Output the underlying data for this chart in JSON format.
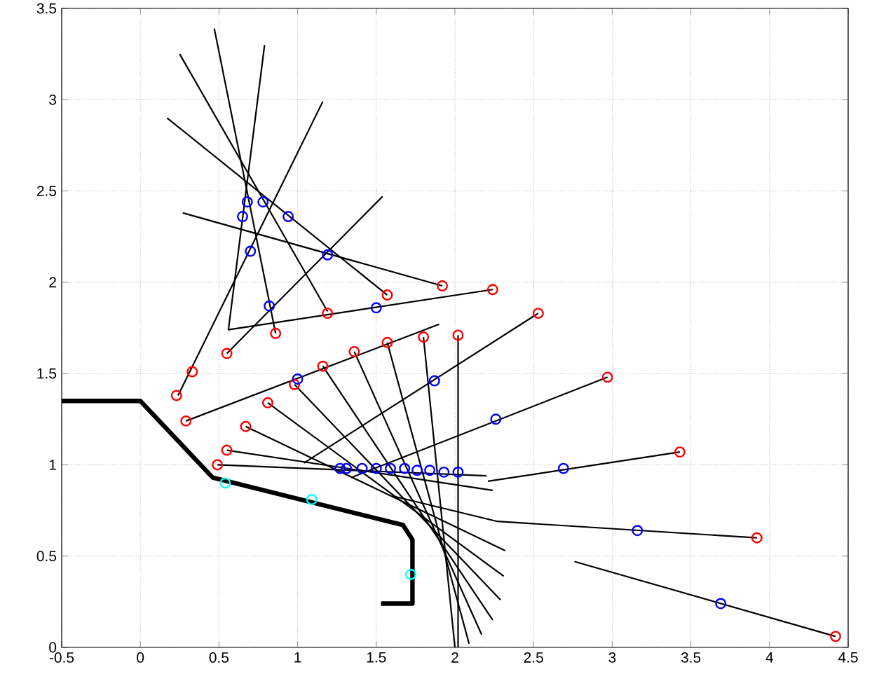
{
  "chart_data": {
    "type": "line",
    "xlim": [
      -0.5,
      4.5
    ],
    "ylim": [
      0,
      3.5
    ],
    "xticks": [
      -0.5,
      0,
      0.5,
      1,
      1.5,
      2,
      2.5,
      3,
      3.5,
      4,
      4.5
    ],
    "yticks": [
      0,
      0.5,
      1,
      1.5,
      2,
      2.5,
      3,
      3.5
    ],
    "grid": true,
    "series": [
      {
        "type": "line",
        "color": "#000000",
        "marker": "none",
        "x": [
          -0.5,
          0,
          0.46,
          1.67,
          1.73,
          1.73,
          1.53
        ],
        "values": [
          1.35,
          1.35,
          0.93,
          0.67,
          0.59,
          0.24,
          0.24
        ]
      },
      {
        "type": "line",
        "color": "#000000",
        "marker": "none",
        "x": [
          0.47,
          0.86
        ],
        "values": [
          3.39,
          1.72
        ]
      },
      {
        "type": "line",
        "color": "#000000",
        "marker": "none",
        "x": [
          0.79,
          0.56,
          2.24
        ],
        "values": [
          3.3,
          1.74,
          1.96
        ]
      },
      {
        "type": "line",
        "color": "#000000",
        "marker": "none",
        "x": [
          1.16,
          0.24
        ],
        "values": [
          2.99,
          1.38
        ]
      },
      {
        "type": "line",
        "color": "#000000",
        "marker": "none",
        "x": [
          0.25,
          1.19
        ],
        "values": [
          3.25,
          1.84
        ]
      },
      {
        "type": "line",
        "color": "#000000",
        "marker": "none",
        "x": [
          0.17,
          1.57
        ],
        "values": [
          2.9,
          1.93
        ]
      },
      {
        "type": "line",
        "color": "#000000",
        "marker": "none",
        "x": [
          0.27,
          1.92
        ],
        "values": [
          2.38,
          1.98
        ]
      },
      {
        "type": "line",
        "color": "#000000",
        "marker": "none",
        "x": [
          1.54,
          0.55
        ],
        "values": [
          2.47,
          1.61
        ]
      },
      {
        "type": "line",
        "color": "#000000",
        "marker": "none",
        "x": [
          0.29,
          1.9
        ],
        "values": [
          1.24,
          1.77
        ]
      },
      {
        "type": "line",
        "color": "#000000",
        "marker": "none",
        "x": [
          1.04,
          2.53
        ],
        "values": [
          1.01,
          1.83
        ]
      },
      {
        "type": "line",
        "color": "#000000",
        "marker": "none",
        "x": [
          1.34,
          2.97
        ],
        "values": [
          0.93,
          1.48
        ]
      },
      {
        "type": "line",
        "color": "#000000",
        "marker": "none",
        "x": [
          2.21,
          3.43
        ],
        "values": [
          0.91,
          1.07
        ]
      },
      {
        "type": "line",
        "color": "#000000",
        "marker": "none",
        "x": [
          1.6,
          2.27,
          3.92
        ],
        "values": [
          0.83,
          0.69,
          0.6
        ]
      },
      {
        "type": "line",
        "color": "#000000",
        "marker": "none",
        "x": [
          2.76,
          4.42
        ],
        "values": [
          0.47,
          0.06
        ]
      },
      {
        "type": "line",
        "color": "#000000",
        "marker": "none",
        "x": [
          0.49,
          2.2
        ],
        "values": [
          1.0,
          0.94
        ]
      },
      {
        "type": "line",
        "color": "#000000",
        "marker": "none",
        "x": [
          0.55,
          2.24
        ],
        "values": [
          1.08,
          0.86
        ]
      },
      {
        "type": "line",
        "color": "#000000",
        "marker": "none",
        "x": [
          0.67,
          2.32
        ],
        "values": [
          1.21,
          0.53
        ]
      },
      {
        "type": "line",
        "color": "#000000",
        "marker": "none",
        "x": [
          0.81,
          2.31
        ],
        "values": [
          1.34,
          0.39
        ]
      },
      {
        "type": "line",
        "color": "#000000",
        "marker": "none",
        "x": [
          0.98,
          2.29
        ],
        "values": [
          1.44,
          0.26
        ]
      },
      {
        "type": "line",
        "color": "#000000",
        "marker": "none",
        "x": [
          1.16,
          2.24
        ],
        "values": [
          1.54,
          0.15
        ]
      },
      {
        "type": "line",
        "color": "#000000",
        "marker": "none",
        "x": [
          1.36,
          2.17
        ],
        "values": [
          1.62,
          0.07
        ]
      },
      {
        "type": "line",
        "color": "#000000",
        "marker": "none",
        "x": [
          1.57,
          2.09
        ],
        "values": [
          1.67,
          0.02
        ]
      },
      {
        "type": "line",
        "color": "#000000",
        "marker": "none",
        "x": [
          1.8,
          2.0
        ],
        "values": [
          1.7,
          0.0
        ]
      },
      {
        "type": "line",
        "color": "#000000",
        "marker": "none",
        "x": [
          2.02,
          2.02
        ],
        "values": [
          1.71,
          0.0
        ]
      },
      {
        "type": "scatter",
        "color": "#ff0000",
        "marker": "circle",
        "x": [
          0.23,
          0.33,
          0.29,
          0.55,
          0.86,
          0.49,
          0.55,
          0.67,
          0.81,
          0.98,
          1.16,
          1.36,
          1.57,
          1.8,
          2.02,
          1.19,
          1.57,
          1.92,
          2.24,
          2.53,
          2.97,
          3.43,
          3.92,
          4.42
        ],
        "values": [
          1.38,
          1.51,
          1.24,
          1.61,
          1.72,
          1.0,
          1.08,
          1.21,
          1.34,
          1.44,
          1.54,
          1.62,
          1.67,
          1.7,
          1.71,
          1.83,
          1.93,
          1.98,
          1.96,
          1.83,
          1.48,
          1.07,
          0.6,
          0.06
        ]
      },
      {
        "type": "scatter",
        "color": "#0000ff",
        "marker": "circle",
        "x": [
          0.68,
          0.78,
          0.65,
          0.94,
          0.7,
          1.19,
          0.82,
          1.5,
          1.0,
          1.87,
          1.27,
          1.31,
          1.41,
          1.5,
          1.59,
          1.68,
          1.76,
          1.84,
          1.93,
          2.02,
          2.26,
          2.69,
          3.16,
          3.69
        ],
        "values": [
          2.44,
          2.44,
          2.36,
          2.36,
          2.17,
          2.15,
          1.87,
          1.86,
          1.47,
          1.46,
          0.98,
          0.98,
          0.98,
          0.98,
          0.98,
          0.98,
          0.97,
          0.97,
          0.96,
          0.96,
          1.25,
          0.98,
          0.64,
          0.24
        ]
      },
      {
        "type": "scatter",
        "color": "#00ffff",
        "marker": "circle",
        "x": [
          0.54,
          1.09,
          1.72
        ],
        "values": [
          0.9,
          0.81,
          0.4
        ]
      }
    ]
  }
}
